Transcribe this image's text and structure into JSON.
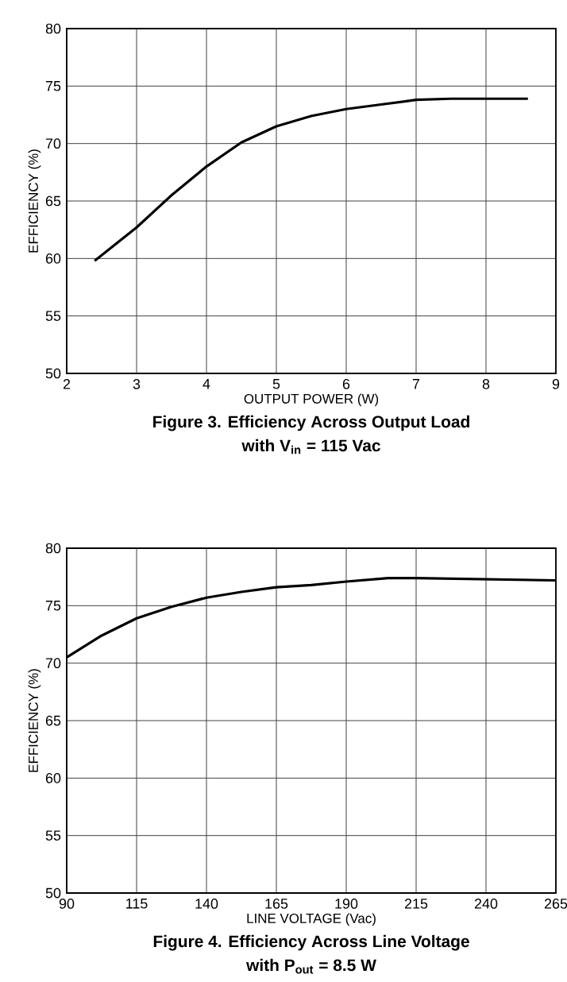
{
  "chart_data": [
    {
      "type": "line",
      "title": "Figure 3. Efficiency Across Output Load",
      "subtitle": "with V$_{in}$ = 115 Vac",
      "xlabel": "OUTPUT POWER (W)",
      "ylabel": "EFFICIENCY (%)",
      "xlim": [
        2,
        9
      ],
      "xticks": [
        2,
        3,
        4,
        5,
        6,
        7,
        8,
        9
      ],
      "ylim": [
        50,
        80
      ],
      "yticks": [
        50,
        55,
        60,
        65,
        70,
        75,
        80
      ],
      "grid": true,
      "series": [
        {
          "color": "#000000",
          "x": [
            2.4,
            3,
            3.5,
            4,
            4.5,
            5,
            5.5,
            6,
            6.5,
            7,
            7.5,
            8,
            8.6
          ],
          "values": [
            59.8,
            62.7,
            65.5,
            68.0,
            70.1,
            71.5,
            72.4,
            73.0,
            73.4,
            73.8,
            73.9,
            73.9,
            73.9
          ]
        }
      ]
    },
    {
      "type": "line",
      "title": "Figure 4. Efficiency Across Line Voltage",
      "subtitle": "with P$_{out}$ = 8.5 W",
      "xlabel": "LINE VOLTAGE (Vac)",
      "ylabel": "EFFICIENCY (%)",
      "xlim": [
        90,
        265
      ],
      "xticks": [
        90,
        115,
        140,
        165,
        190,
        215,
        240,
        265
      ],
      "ylim": [
        50,
        80
      ],
      "yticks": [
        50,
        55,
        60,
        65,
        70,
        75,
        80
      ],
      "grid": true,
      "series": [
        {
          "color": "#000000",
          "x": [
            90,
            102.5,
            115,
            127.5,
            140,
            152.5,
            165,
            177.5,
            190,
            205,
            215,
            240,
            265
          ],
          "values": [
            70.5,
            72.4,
            73.9,
            74.9,
            75.7,
            76.2,
            76.6,
            76.8,
            77.1,
            77.4,
            77.4,
            77.3,
            77.2
          ]
        }
      ]
    }
  ]
}
